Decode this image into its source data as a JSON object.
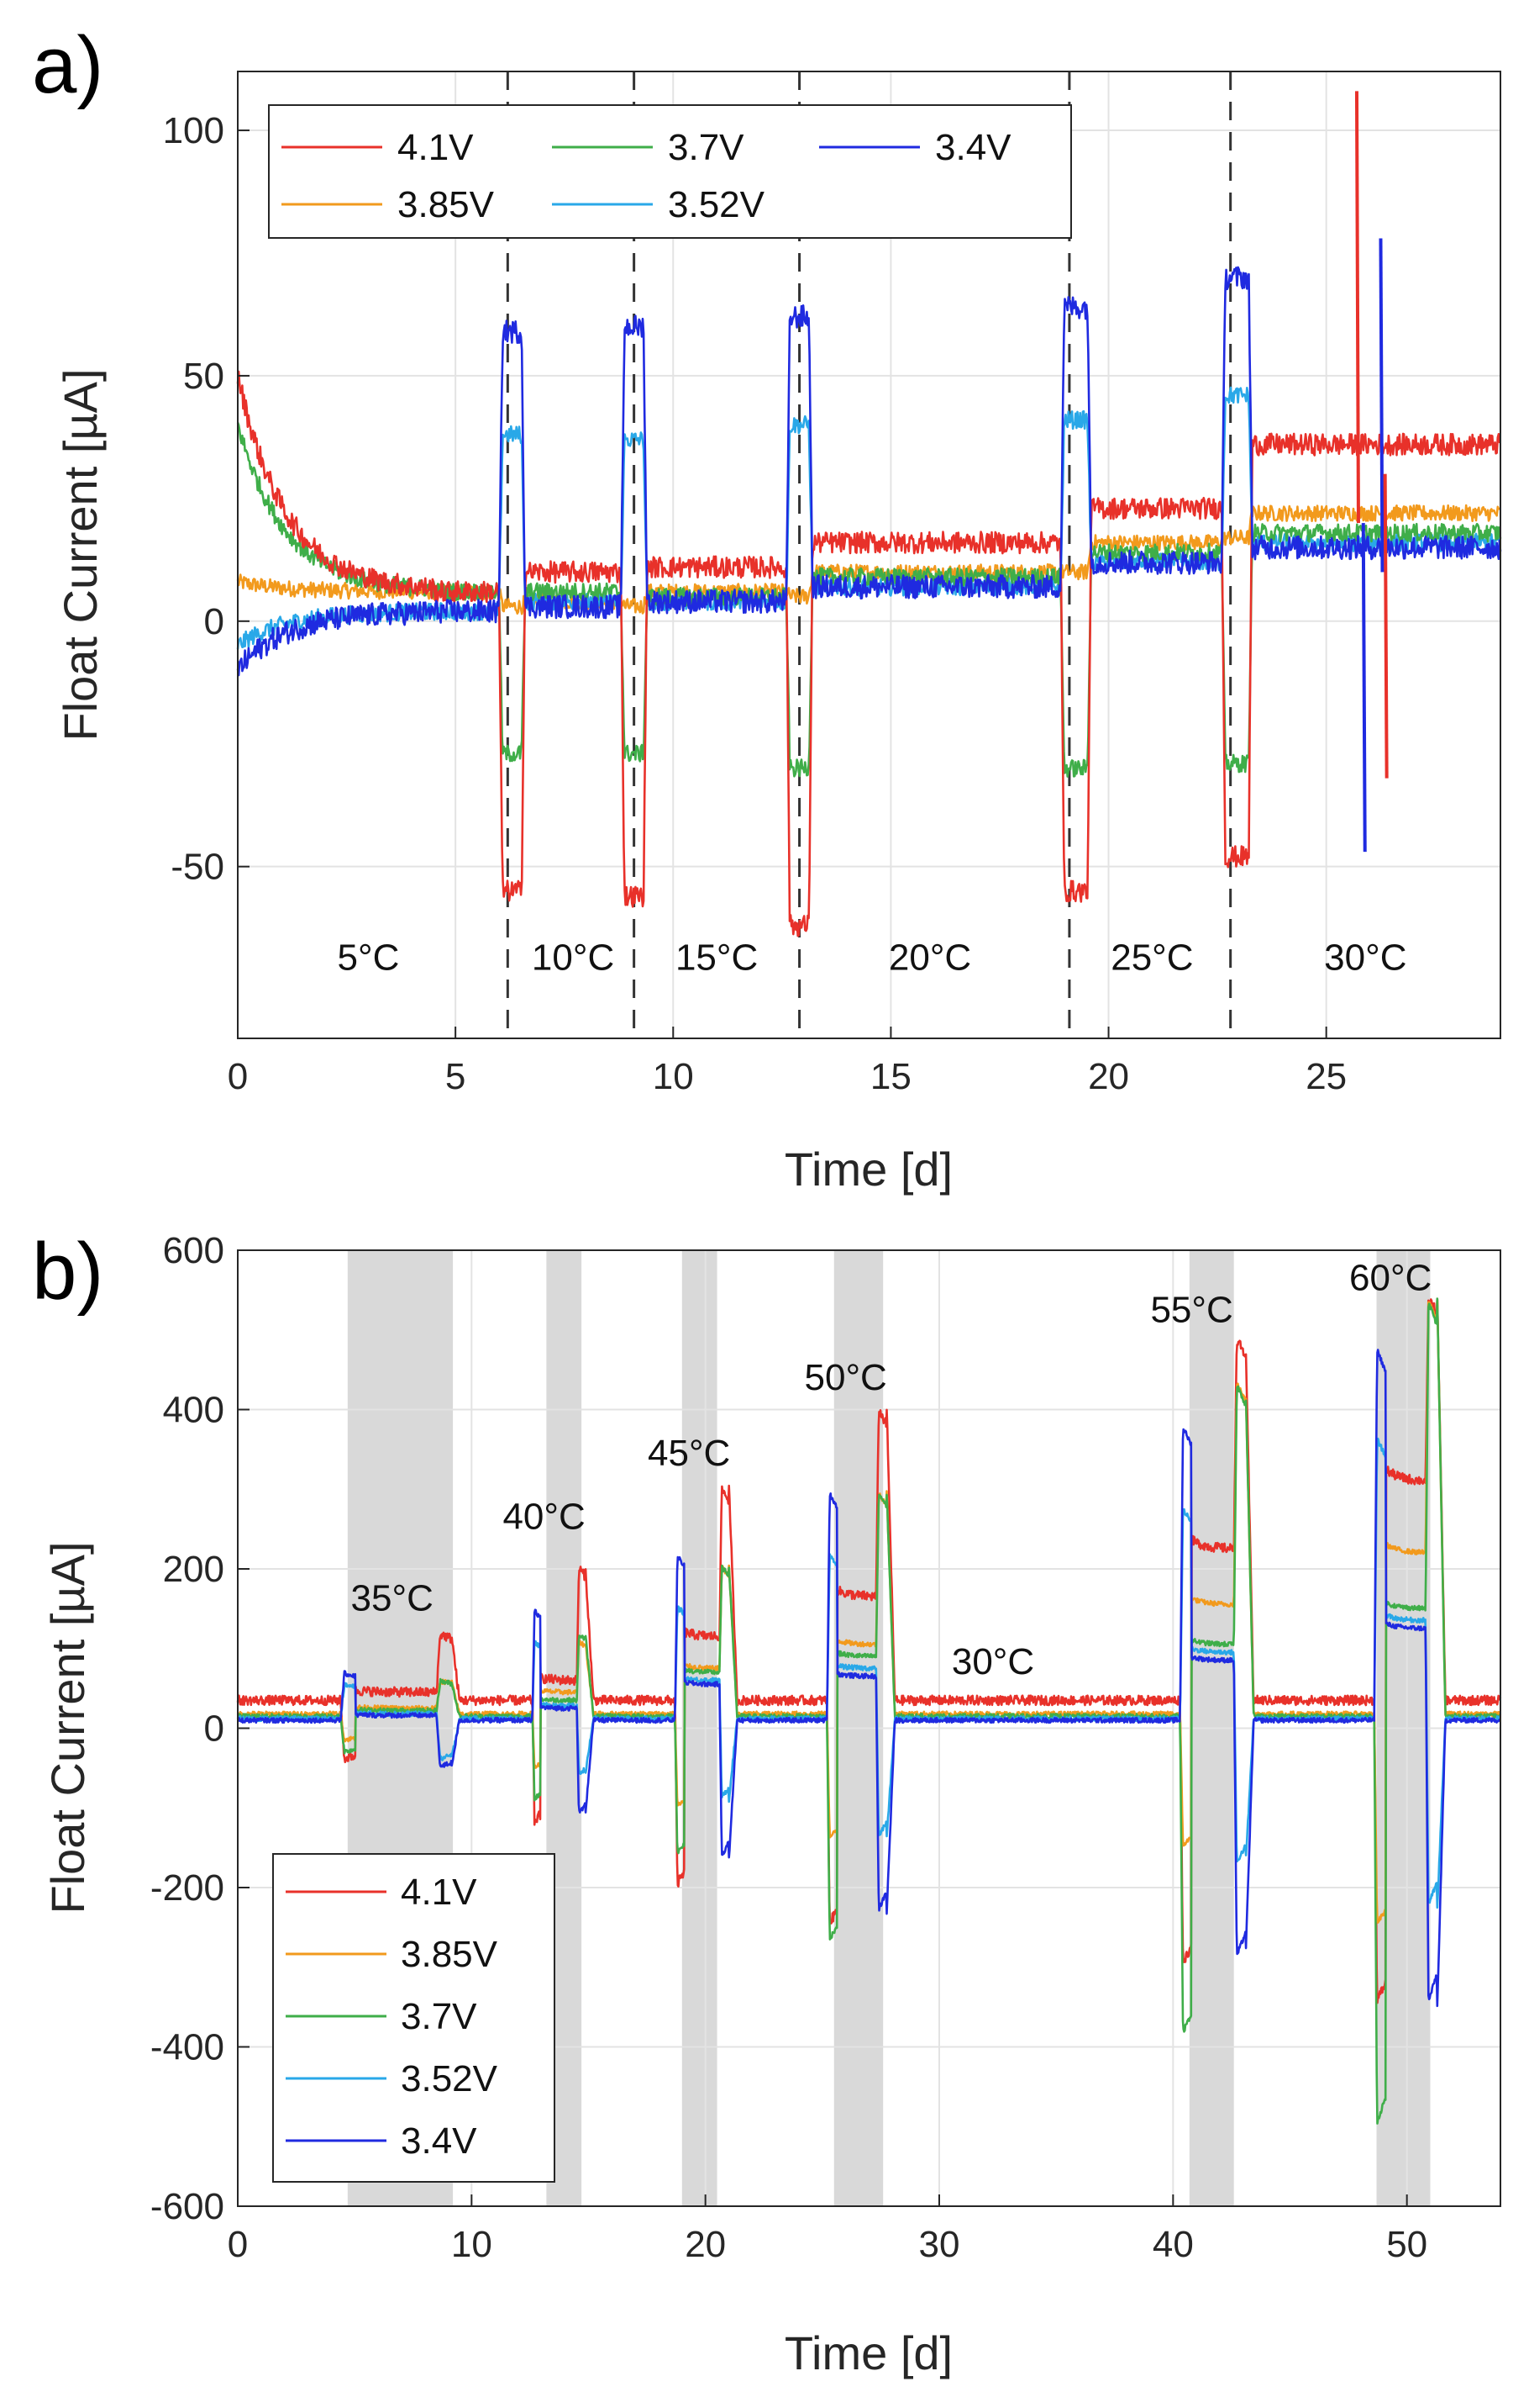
{
  "chart_data": [
    {
      "id": "a",
      "panel_label": "a)",
      "type": "line",
      "xlabel": "Time [d]",
      "ylabel": "Float Current [µA]",
      "xlim": [
        0,
        29
      ],
      "ylim": [
        -85,
        112
      ],
      "xticks": [
        0,
        5,
        10,
        15,
        20,
        25
      ],
      "yticks": [
        -50,
        0,
        50,
        100
      ],
      "grid": true,
      "legend_position": "top-left",
      "legend_columns": 3,
      "series": [
        {
          "name": "4.1V",
          "color": "#e8312a"
        },
        {
          "name": "3.7V",
          "color": "#3fae49"
        },
        {
          "name": "3.4V",
          "color": "#1f2ae0"
        },
        {
          "name": "3.85V",
          "color": "#f29a1d"
        },
        {
          "name": "3.52V",
          "color": "#29a8e8"
        }
      ],
      "segments": [
        {
          "label": "5°C",
          "start": 0,
          "end": 6.2,
          "v41": 6,
          "v385": 6,
          "v37": 6,
          "v352": 2,
          "v34": 2
        },
        {
          "label": "10°C",
          "start": 6.2,
          "end": 9.0,
          "v41": 10,
          "v385": 4,
          "v37": 6,
          "v352": 4,
          "v34": 3
        },
        {
          "label": "15°C",
          "start": 9.0,
          "end": 12.8,
          "v41": 11,
          "v385": 6,
          "v37": 5,
          "v352": 4,
          "v34": 4
        },
        {
          "label": "20°C",
          "start": 12.8,
          "end": 19.1,
          "v41": 16,
          "v385": 10,
          "v37": 9,
          "v352": 7,
          "v34": 7
        },
        {
          "label": "25°C",
          "start": 19.1,
          "end": 22.8,
          "v41": 23,
          "v385": 16,
          "v37": 14,
          "v352": 12,
          "v34": 12
        },
        {
          "label": "30°C",
          "start": 22.8,
          "end": 29,
          "v41": 36,
          "v385": 22,
          "v37": 18,
          "v352": 16,
          "v34": 15
        }
      ],
      "steps": [
        {
          "start": 6.0,
          "end": 6.6,
          "v41": -55,
          "v385": 3,
          "v37": -27,
          "v352": 38,
          "v34": 59
        },
        {
          "start": 8.8,
          "end": 9.4,
          "v41": -56,
          "v385": 3,
          "v37": -27,
          "v352": 37,
          "v34": 60
        },
        {
          "start": 12.6,
          "end": 13.2,
          "v41": -62,
          "v385": 5,
          "v37": -30,
          "v352": 40,
          "v34": 62
        },
        {
          "start": 18.9,
          "end": 19.6,
          "v41": -55,
          "v385": 10,
          "v37": -30,
          "v352": 41,
          "v34": 64
        },
        {
          "start": 22.6,
          "end": 23.3,
          "v41": -48,
          "v385": 17,
          "v37": -29,
          "v352": 46,
          "v34": 70
        }
      ],
      "dashed_lines_x": [
        6.2,
        9.1,
        12.9,
        19.1,
        22.8
      ],
      "spikes": [
        {
          "x": 25.7,
          "series": "4.1V",
          "hi": 108,
          "lo": 20
        },
        {
          "x": 25.85,
          "series": "3.4V",
          "hi": 20,
          "lo": -47
        },
        {
          "x": 26.25,
          "series": "3.4V",
          "hi": 78,
          "lo": 10
        },
        {
          "x": 26.35,
          "series": "4.1V",
          "hi": 30,
          "lo": -32
        }
      ],
      "initial_values": {
        "v41": 50,
        "v385": 8,
        "v37": 40,
        "v352": -5,
        "v34": -10
      },
      "annotations": [
        {
          "text": "5°C",
          "x": 3.0,
          "y": -71
        },
        {
          "text": "10°C",
          "x": 7.7,
          "y": -71
        },
        {
          "text": "15°C",
          "x": 11.0,
          "y": -71
        },
        {
          "text": "20°C",
          "x": 15.9,
          "y": -71
        },
        {
          "text": "25°C",
          "x": 21.0,
          "y": -71
        },
        {
          "text": "30°C",
          "x": 25.9,
          "y": -71
        }
      ]
    },
    {
      "id": "b",
      "panel_label": "b)",
      "type": "line",
      "xlabel": "Time [d]",
      "ylabel": "Float Current [µA]",
      "xlim": [
        0,
        54
      ],
      "ylim": [
        -600,
        600
      ],
      "xticks": [
        0,
        10,
        20,
        30,
        40,
        50
      ],
      "yticks": [
        -600,
        -400,
        -200,
        0,
        200,
        400,
        600
      ],
      "grid": true,
      "legend_position": "bottom-left",
      "legend_columns": 1,
      "series": [
        {
          "name": "4.1V",
          "color": "#e8312a",
          "baseline": 35,
          "plateau": 0,
          "neg": -130
        },
        {
          "name": "3.85V",
          "color": "#f29a1d",
          "baseline": 18,
          "plateau": 0,
          "neg": 0
        },
        {
          "name": "3.7V",
          "color": "#3fae49",
          "baseline": 15,
          "plateau": 0,
          "neg": -80
        },
        {
          "name": "3.52V",
          "color": "#29a8e8",
          "baseline": 12,
          "plateau": 0,
          "neg": 0
        },
        {
          "name": "3.4V",
          "color": "#1f2ae0",
          "baseline": 10,
          "plateau": 0,
          "neg": 0
        }
      ],
      "shaded_regions": [
        {
          "start": 4.7,
          "end": 9.2
        },
        {
          "start": 13.2,
          "end": 14.7
        },
        {
          "start": 19.0,
          "end": 20.5
        },
        {
          "start": 25.5,
          "end": 27.6
        },
        {
          "start": 40.7,
          "end": 42.6
        },
        {
          "start": 48.7,
          "end": 51.0
        }
      ],
      "events": [
        {
          "temp": "35°C",
          "t1": 4.4,
          "t2": 8.5,
          "w": 1.4,
          "step1": {
            "4.1V": -40,
            "3.85V": -15,
            "3.7V": -30,
            "3.52V": 55,
            "3.4V": 70
          },
          "mid": {
            "4.1V": 45,
            "3.85V": 25,
            "3.7V": 22,
            "3.52V": 18,
            "3.4V": 16
          },
          "step2": {
            "4.1V": 120,
            "3.85V": 60,
            "3.7V": 60,
            "3.52V": -40,
            "3.4V": -50
          }
        },
        {
          "temp": "40°C",
          "t1": 12.6,
          "t2": 14.5,
          "w": 0.8,
          "step1": {
            "4.1V": -120,
            "3.85V": -50,
            "3.7V": -90,
            "3.52V": 110,
            "3.4V": 150
          },
          "mid": {
            "4.1V": 60,
            "3.85V": 45,
            "3.7V": 35,
            "3.52V": 28,
            "3.4V": 25
          },
          "step2": {
            "4.1V": 205,
            "3.85V": 110,
            "3.7V": 120,
            "3.52V": -60,
            "3.4V": -110
          }
        },
        {
          "temp": "45°C",
          "t1": 18.7,
          "t2": 20.6,
          "w": 0.9,
          "step1": {
            "4.1V": -200,
            "3.85V": -100,
            "3.7V": -160,
            "3.52V": 155,
            "3.4V": 220
          },
          "mid": {
            "4.1V": 115,
            "3.85V": 75,
            "3.7V": 70,
            "3.52V": 60,
            "3.4V": 55
          },
          "step2": {
            "4.1V": 305,
            "3.85V": 205,
            "3.7V": 205,
            "3.52V": -90,
            "3.4V": -165
          }
        },
        {
          "temp": "50°C",
          "t1": 25.2,
          "t2": 27.3,
          "w": 1.0,
          "step1": {
            "4.1V": -250,
            "3.85V": -140,
            "3.7V": -270,
            "3.52V": 220,
            "3.4V": 300
          },
          "mid": {
            "4.1V": 165,
            "3.85V": 105,
            "3.7V": 90,
            "3.52V": 75,
            "3.4V": 65
          },
          "step2": {
            "4.1V": 405,
            "3.85V": 300,
            "3.7V": 300,
            "3.52V": -140,
            "3.4V": -235
          }
        },
        {
          "temp": "55°C",
          "t1": 40.3,
          "t2": 42.6,
          "w": 1.1,
          "step1": {
            "4.1V": -300,
            "3.85V": -150,
            "3.7V": -390,
            "3.52V": 280,
            "3.4V": 385
          },
          "mid": {
            "4.1V": 225,
            "3.85V": 155,
            "3.7V": 105,
            "3.52V": 95,
            "3.4V": 85
          },
          "step2": {
            "4.1V": 495,
            "3.85V": 440,
            "3.7V": 440,
            "3.52V": -175,
            "3.4V": -295
          }
        },
        {
          "temp": "60°C",
          "t1": 48.6,
          "t2": 50.8,
          "w": 1.1,
          "step1": {
            "4.1V": -350,
            "3.85V": -250,
            "3.7V": -505,
            "3.52V": 370,
            "3.4V": 485
          },
          "mid": {
            "4.1V": 310,
            "3.85V": 220,
            "3.7V": 150,
            "3.52V": 135,
            "3.4V": 125
          },
          "step2": {
            "4.1V": 545,
            "3.85V": 545,
            "3.7V": 545,
            "3.52V": -230,
            "3.4V": -355
          }
        }
      ],
      "annotations": [
        {
          "text": "35°C",
          "x": 6.6,
          "y": 148
        },
        {
          "text": "40°C",
          "x": 13.1,
          "y": 250
        },
        {
          "text": "45°C",
          "x": 19.3,
          "y": 330
        },
        {
          "text": "50°C",
          "x": 26.0,
          "y": 425
        },
        {
          "text": "30°C",
          "x": 32.3,
          "y": 68
        },
        {
          "text": "55°C",
          "x": 40.8,
          "y": 510
        },
        {
          "text": "60°C",
          "x": 49.3,
          "y": 550
        }
      ]
    }
  ]
}
